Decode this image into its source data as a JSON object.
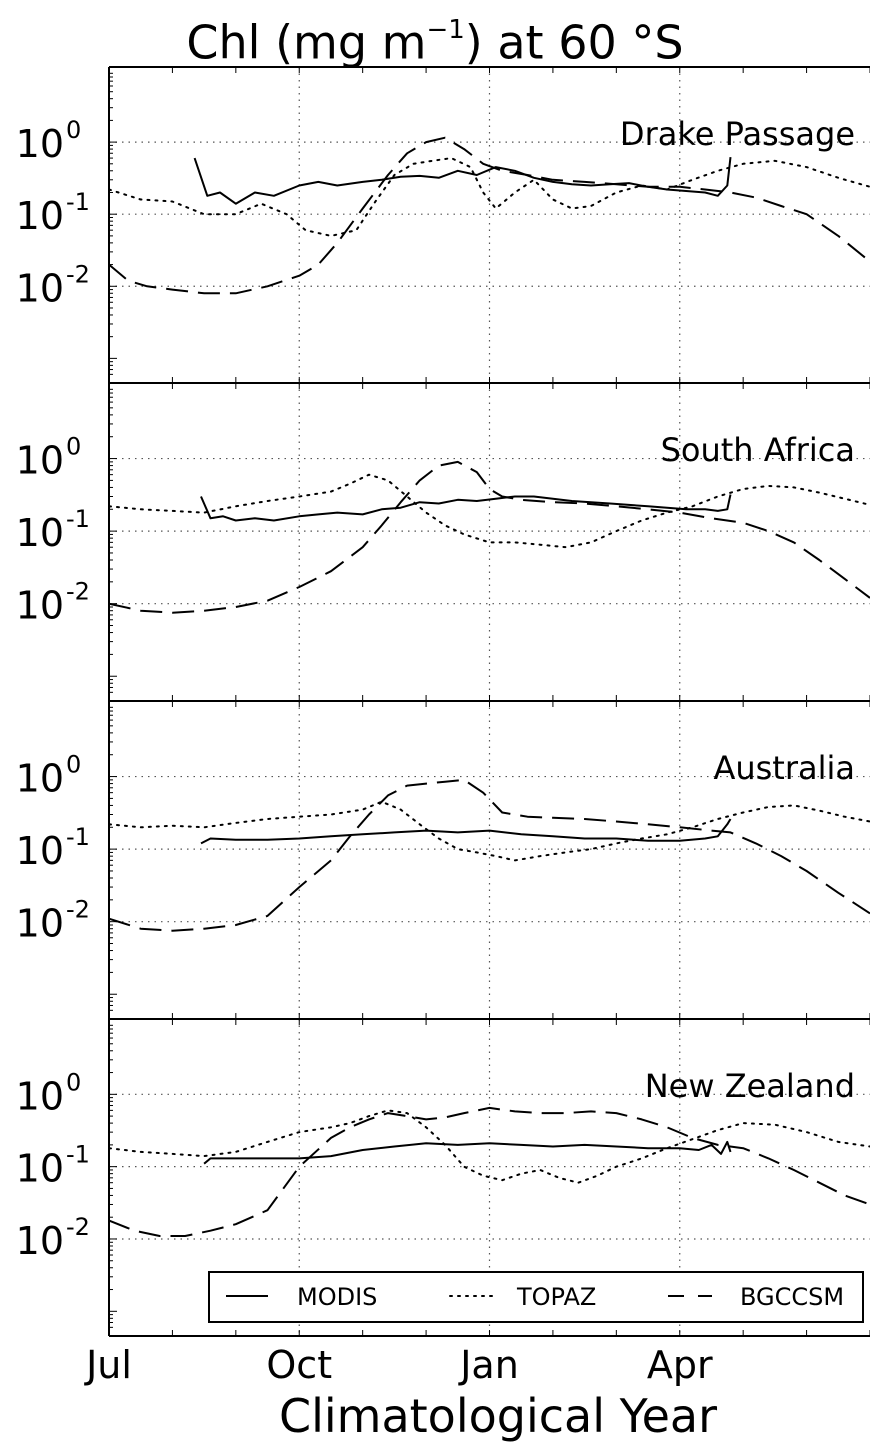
{
  "figure": {
    "title_prefix": "Chl (mg m",
    "title_exp": "−1",
    "title_suffix": ") at 60 °S",
    "xlabel": "Climatological Year",
    "xticks": [
      "Jul",
      "Oct",
      "Jan",
      "Apr"
    ],
    "ytick_base": "10",
    "ytick_exponents": [
      "0",
      "-1",
      "-2"
    ]
  },
  "chart_data": [
    {
      "type": "line",
      "title": "Drake Passage",
      "x_unit": "month of climatological year (0 = 1 Jul)",
      "ylim": [
        0.0005,
        10
      ],
      "yscale": "log",
      "grid": true,
      "series": [
        {
          "name": "MODIS",
          "style": "solid",
          "x": [
            1.35,
            1.55,
            1.75,
            2.0,
            2.3,
            2.6,
            3.0,
            3.3,
            3.6,
            4.0,
            4.3,
            4.6,
            4.9,
            5.2,
            5.5,
            5.8,
            6.1,
            6.4,
            6.7,
            7.0,
            7.3,
            7.6,
            7.9,
            8.2,
            8.5,
            8.8,
            9.1,
            9.4,
            9.6,
            9.75,
            9.8
          ],
          "y": [
            0.6,
            0.18,
            0.2,
            0.14,
            0.2,
            0.18,
            0.25,
            0.28,
            0.25,
            0.28,
            0.3,
            0.33,
            0.34,
            0.32,
            0.4,
            0.35,
            0.45,
            0.4,
            0.32,
            0.28,
            0.26,
            0.25,
            0.26,
            0.27,
            0.24,
            0.22,
            0.21,
            0.2,
            0.18,
            0.25,
            0.62
          ]
        },
        {
          "name": "TOPAZ",
          "style": "dotted",
          "x": [
            0,
            0.5,
            1.0,
            1.5,
            2.0,
            2.4,
            2.8,
            3.1,
            3.5,
            3.9,
            4.2,
            4.5,
            4.8,
            5.1,
            5.4,
            5.7,
            5.9,
            6.1,
            6.4,
            6.7,
            7.0,
            7.3,
            7.6,
            8.0,
            8.4,
            8.8,
            9.2,
            9.6,
            10.0,
            10.5,
            11.0,
            11.5,
            12.0
          ],
          "y": [
            0.22,
            0.16,
            0.15,
            0.1,
            0.1,
            0.14,
            0.1,
            0.06,
            0.05,
            0.06,
            0.15,
            0.35,
            0.5,
            0.55,
            0.6,
            0.45,
            0.2,
            0.12,
            0.2,
            0.3,
            0.16,
            0.12,
            0.13,
            0.2,
            0.25,
            0.22,
            0.3,
            0.4,
            0.5,
            0.55,
            0.45,
            0.32,
            0.24
          ]
        },
        {
          "name": "BGCCSM",
          "style": "dashed",
          "x": [
            0,
            0.3,
            0.6,
            1.0,
            1.5,
            2.0,
            2.5,
            3.0,
            3.3,
            3.6,
            4.0,
            4.4,
            4.7,
            5.0,
            5.3,
            5.6,
            5.9,
            6.2,
            6.6,
            7.0,
            7.5,
            8.0,
            8.5,
            9.0,
            9.4,
            9.8,
            10.2,
            10.6,
            11.0,
            11.5,
            12.0
          ],
          "y": [
            0.02,
            0.012,
            0.01,
            0.009,
            0.008,
            0.008,
            0.01,
            0.014,
            0.02,
            0.04,
            0.12,
            0.35,
            0.7,
            1.0,
            1.15,
            0.8,
            0.5,
            0.4,
            0.35,
            0.3,
            0.28,
            0.26,
            0.24,
            0.24,
            0.22,
            0.2,
            0.17,
            0.13,
            0.1,
            0.05,
            0.022
          ]
        }
      ]
    },
    {
      "type": "line",
      "title": "South Africa",
      "x_unit": "month of climatological year (0 = 1 Jul)",
      "ylim": [
        0.0005,
        10
      ],
      "yscale": "log",
      "grid": true,
      "series": [
        {
          "name": "MODIS",
          "style": "solid",
          "x": [
            1.45,
            1.6,
            1.8,
            2.0,
            2.3,
            2.6,
            3.0,
            3.3,
            3.6,
            4.0,
            4.3,
            4.6,
            4.9,
            5.2,
            5.5,
            5.8,
            6.1,
            6.4,
            6.7,
            7.0,
            7.3,
            7.6,
            7.9,
            8.2,
            8.5,
            8.8,
            9.1,
            9.4,
            9.6,
            9.75,
            9.8
          ],
          "y": [
            0.3,
            0.15,
            0.16,
            0.14,
            0.15,
            0.14,
            0.16,
            0.17,
            0.18,
            0.17,
            0.2,
            0.21,
            0.25,
            0.24,
            0.27,
            0.26,
            0.28,
            0.3,
            0.3,
            0.28,
            0.26,
            0.25,
            0.24,
            0.23,
            0.22,
            0.21,
            0.2,
            0.2,
            0.19,
            0.2,
            0.32
          ]
        },
        {
          "name": "TOPAZ",
          "style": "dotted",
          "x": [
            0,
            0.5,
            1.0,
            1.5,
            2.0,
            2.5,
            3.0,
            3.5,
            3.8,
            4.1,
            4.4,
            4.7,
            5.0,
            5.3,
            5.6,
            6.0,
            6.4,
            6.8,
            7.2,
            7.6,
            8.0,
            8.4,
            8.8,
            9.2,
            9.6,
            10.0,
            10.4,
            10.8,
            11.2,
            11.6,
            12.0
          ],
          "y": [
            0.22,
            0.2,
            0.19,
            0.18,
            0.22,
            0.26,
            0.3,
            0.35,
            0.45,
            0.6,
            0.5,
            0.3,
            0.18,
            0.12,
            0.09,
            0.07,
            0.07,
            0.065,
            0.06,
            0.07,
            0.1,
            0.14,
            0.18,
            0.22,
            0.3,
            0.38,
            0.42,
            0.4,
            0.34,
            0.28,
            0.23
          ]
        },
        {
          "name": "BGCCSM",
          "style": "dashed",
          "x": [
            0,
            0.5,
            1.0,
            1.5,
            2.0,
            2.5,
            3.0,
            3.5,
            4.0,
            4.3,
            4.6,
            4.9,
            5.2,
            5.5,
            5.8,
            6.0,
            6.2,
            6.5,
            7.0,
            7.5,
            8.0,
            8.5,
            9.0,
            9.5,
            10.0,
            10.4,
            10.8,
            11.2,
            11.6,
            12.0
          ],
          "y": [
            0.01,
            0.008,
            0.0075,
            0.008,
            0.009,
            0.011,
            0.017,
            0.028,
            0.06,
            0.12,
            0.25,
            0.5,
            0.8,
            0.9,
            0.65,
            0.38,
            0.3,
            0.27,
            0.25,
            0.24,
            0.22,
            0.2,
            0.18,
            0.15,
            0.13,
            0.1,
            0.07,
            0.04,
            0.022,
            0.012
          ]
        }
      ]
    },
    {
      "type": "line",
      "title": "Australia",
      "x_unit": "month of climatological year (0 = 1 Jul)",
      "ylim": [
        0.0005,
        10
      ],
      "yscale": "log",
      "grid": true,
      "series": [
        {
          "name": "MODIS",
          "style": "solid",
          "x": [
            1.45,
            1.6,
            2.0,
            2.5,
            3.0,
            3.5,
            4.0,
            4.5,
            5.0,
            5.5,
            6.0,
            6.5,
            7.0,
            7.5,
            8.0,
            8.5,
            9.0,
            9.4,
            9.6,
            9.75,
            9.8
          ],
          "y": [
            0.12,
            0.14,
            0.135,
            0.135,
            0.14,
            0.15,
            0.16,
            0.17,
            0.18,
            0.17,
            0.18,
            0.16,
            0.15,
            0.14,
            0.14,
            0.13,
            0.13,
            0.14,
            0.15,
            0.22,
            0.26
          ]
        },
        {
          "name": "TOPAZ",
          "style": "dotted",
          "x": [
            0,
            0.5,
            1.0,
            1.5,
            2.0,
            2.5,
            3.0,
            3.5,
            4.0,
            4.3,
            4.6,
            4.9,
            5.2,
            5.5,
            5.8,
            6.1,
            6.4,
            6.8,
            7.2,
            7.6,
            8.0,
            8.4,
            8.8,
            9.2,
            9.6,
            10.0,
            10.4,
            10.8,
            11.2,
            11.6,
            12.0
          ],
          "y": [
            0.22,
            0.2,
            0.21,
            0.2,
            0.23,
            0.26,
            0.28,
            0.3,
            0.35,
            0.45,
            0.35,
            0.22,
            0.14,
            0.1,
            0.09,
            0.08,
            0.07,
            0.08,
            0.09,
            0.1,
            0.12,
            0.14,
            0.16,
            0.2,
            0.26,
            0.32,
            0.38,
            0.4,
            0.34,
            0.28,
            0.24
          ]
        },
        {
          "name": "BGCCSM",
          "style": "dashed",
          "x": [
            0,
            0.5,
            1.0,
            1.5,
            2.0,
            2.5,
            3.0,
            3.5,
            3.8,
            4.1,
            4.4,
            4.7,
            5.0,
            5.3,
            5.6,
            5.9,
            6.2,
            6.6,
            7.0,
            7.5,
            8.0,
            8.5,
            9.0,
            9.5,
            9.8,
            10.2,
            10.6,
            11.0,
            11.5,
            12.0
          ],
          "y": [
            0.011,
            0.008,
            0.0075,
            0.008,
            0.009,
            0.012,
            0.03,
            0.07,
            0.15,
            0.3,
            0.55,
            0.75,
            0.8,
            0.85,
            0.9,
            0.6,
            0.32,
            0.28,
            0.27,
            0.26,
            0.24,
            0.22,
            0.2,
            0.18,
            0.17,
            0.12,
            0.08,
            0.05,
            0.025,
            0.013
          ]
        }
      ]
    },
    {
      "type": "line",
      "title": "New Zealand",
      "x_unit": "month of climatological year (0 = 1 Jul)",
      "ylim": [
        0.0005,
        10
      ],
      "yscale": "log",
      "grid": true,
      "series": [
        {
          "name": "MODIS",
          "style": "solid",
          "x": [
            1.5,
            1.6,
            2.0,
            2.5,
            3.0,
            3.5,
            4.0,
            4.5,
            5.0,
            5.5,
            6.0,
            6.5,
            7.0,
            7.5,
            8.0,
            8.5,
            9.0,
            9.3,
            9.5,
            9.65,
            9.75,
            9.8
          ],
          "y": [
            0.11,
            0.13,
            0.13,
            0.13,
            0.13,
            0.14,
            0.17,
            0.19,
            0.21,
            0.2,
            0.21,
            0.2,
            0.19,
            0.2,
            0.19,
            0.18,
            0.18,
            0.17,
            0.2,
            0.15,
            0.22,
            0.16
          ]
        },
        {
          "name": "TOPAZ",
          "style": "dotted",
          "x": [
            0,
            0.5,
            1.0,
            1.5,
            2.0,
            2.5,
            3.0,
            3.5,
            3.8,
            4.1,
            4.4,
            4.7,
            5.0,
            5.3,
            5.6,
            5.9,
            6.2,
            6.5,
            6.8,
            7.1,
            7.4,
            7.7,
            8.0,
            8.4,
            8.8,
            9.2,
            9.6,
            10.0,
            10.5,
            11.0,
            11.5,
            12.0
          ],
          "y": [
            0.18,
            0.16,
            0.15,
            0.14,
            0.16,
            0.22,
            0.3,
            0.35,
            0.4,
            0.5,
            0.6,
            0.55,
            0.35,
            0.2,
            0.1,
            0.075,
            0.065,
            0.08,
            0.09,
            0.07,
            0.06,
            0.075,
            0.1,
            0.13,
            0.18,
            0.24,
            0.32,
            0.4,
            0.38,
            0.3,
            0.22,
            0.19
          ]
        },
        {
          "name": "BGCCSM",
          "style": "dashed",
          "x": [
            0,
            0.4,
            0.8,
            1.2,
            1.6,
            2.0,
            2.5,
            3.0,
            3.5,
            3.8,
            4.1,
            4.4,
            4.7,
            5.0,
            5.3,
            5.6,
            6.0,
            6.4,
            6.8,
            7.2,
            7.6,
            8.0,
            8.4,
            8.8,
            9.2,
            9.6,
            10.0,
            10.4,
            10.8,
            11.2,
            11.6,
            12.0
          ],
          "y": [
            0.018,
            0.013,
            0.011,
            0.011,
            0.013,
            0.016,
            0.025,
            0.1,
            0.25,
            0.35,
            0.45,
            0.55,
            0.5,
            0.45,
            0.48,
            0.55,
            0.65,
            0.58,
            0.55,
            0.55,
            0.58,
            0.55,
            0.45,
            0.35,
            0.25,
            0.2,
            0.18,
            0.13,
            0.09,
            0.06,
            0.04,
            0.03
          ]
        }
      ]
    }
  ],
  "legend": {
    "placement": "lower-right of bottom panel",
    "entries": [
      {
        "label": "MODIS",
        "style": "solid"
      },
      {
        "label": "TOPAZ",
        "style": "dotted"
      },
      {
        "label": "BGCCSM",
        "style": "dashed"
      }
    ]
  }
}
